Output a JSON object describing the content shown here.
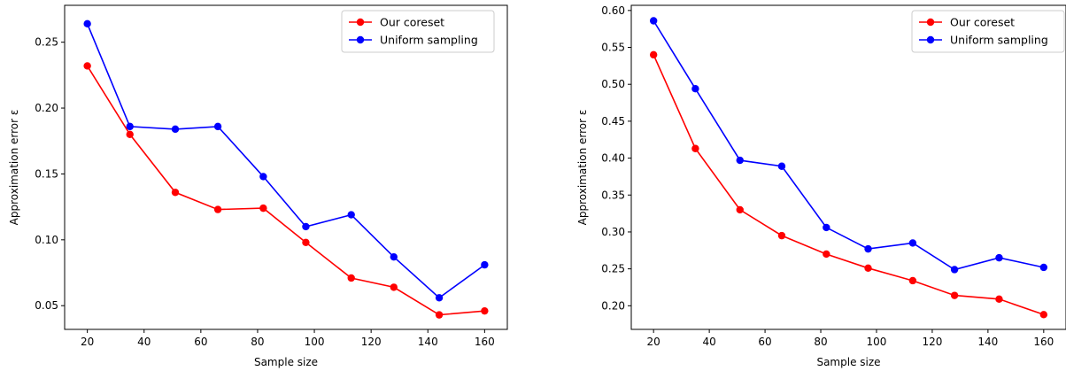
{
  "chart_data": [
    {
      "type": "line",
      "title": "",
      "xlabel": "Sample size",
      "ylabel": "Approximation error ε",
      "xlim": [
        12,
        168
      ],
      "ylim": [
        0.032,
        0.278
      ],
      "xticks": [
        20,
        40,
        60,
        80,
        100,
        120,
        140,
        160
      ],
      "yticks": [
        0.05,
        0.1,
        0.15,
        0.2,
        0.25
      ],
      "ytick_labels": [
        "0.05",
        "0.10",
        "0.15",
        "0.20",
        "0.25"
      ],
      "legend_position": "top-right",
      "grid": false,
      "x": [
        20,
        35,
        51,
        66,
        82,
        97,
        113,
        128,
        144,
        160
      ],
      "series": [
        {
          "name": "Our coreset",
          "color": "#ff0000",
          "values": [
            0.232,
            0.18,
            0.136,
            0.123,
            0.124,
            0.098,
            0.071,
            0.064,
            0.043,
            0.046
          ]
        },
        {
          "name": "Uniform sampling",
          "color": "#0000ff",
          "values": [
            0.264,
            0.186,
            0.184,
            0.186,
            0.148,
            0.11,
            0.119,
            0.087,
            0.056,
            0.081
          ]
        }
      ]
    },
    {
      "type": "line",
      "title": "",
      "xlabel": "Sample size",
      "ylabel": "Approximation error ε",
      "xlim": [
        12,
        168
      ],
      "ylim": [
        0.168,
        0.607
      ],
      "xticks": [
        20,
        40,
        60,
        80,
        100,
        120,
        140,
        160
      ],
      "yticks": [
        0.2,
        0.25,
        0.3,
        0.35,
        0.4,
        0.45,
        0.5,
        0.55,
        0.6
      ],
      "ytick_labels": [
        "0.20",
        "0.25",
        "0.30",
        "0.35",
        "0.40",
        "0.45",
        "0.50",
        "0.55",
        "0.60"
      ],
      "legend_position": "top-right",
      "grid": false,
      "x": [
        20,
        35,
        51,
        66,
        82,
        97,
        113,
        128,
        144,
        160
      ],
      "series": [
        {
          "name": "Our coreset",
          "color": "#ff0000",
          "values": [
            0.54,
            0.413,
            0.33,
            0.295,
            0.27,
            0.251,
            0.234,
            0.214,
            0.209,
            0.188
          ]
        },
        {
          "name": "Uniform sampling",
          "color": "#0000ff",
          "values": [
            0.586,
            0.494,
            0.397,
            0.389,
            0.306,
            0.277,
            0.285,
            0.249,
            0.265,
            0.252
          ]
        }
      ]
    }
  ]
}
